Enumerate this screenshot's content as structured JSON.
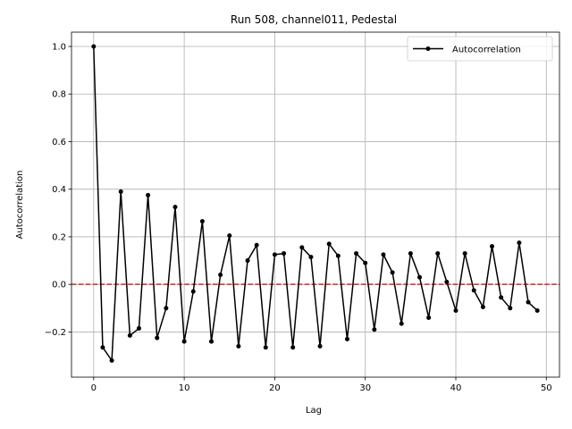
{
  "chart_data": {
    "type": "line",
    "title": "Run 508, channel011, Pedestal",
    "xlabel": "Lag",
    "ylabel": "Autocorrelation",
    "xlim": [
      -2.45,
      51.45
    ],
    "ylim": [
      -0.39,
      1.06
    ],
    "xticks": [
      0,
      10,
      20,
      30,
      40,
      50
    ],
    "yticks": [
      -0.2,
      0.0,
      0.2,
      0.4,
      0.6,
      0.8,
      1.0
    ],
    "xtick_labels": [
      "0",
      "10",
      "20",
      "30",
      "40",
      "50"
    ],
    "ytick_labels": [
      "−0.2",
      "0.0",
      "0.2",
      "0.4",
      "0.6",
      "0.8",
      "1.0"
    ],
    "grid": true,
    "legend": {
      "position": "top-right",
      "entries": [
        "Autocorrelation"
      ]
    },
    "reference_line": {
      "y": 0.0,
      "color": "#d62728",
      "style": "dashed"
    },
    "series": [
      {
        "name": "Autocorrelation",
        "color": "#000000",
        "x": [
          0,
          1,
          2,
          3,
          4,
          5,
          6,
          7,
          8,
          9,
          10,
          11,
          12,
          13,
          14,
          15,
          16,
          17,
          18,
          19,
          20,
          21,
          22,
          23,
          24,
          25,
          26,
          27,
          28,
          29,
          30,
          31,
          32,
          33,
          34,
          35,
          36,
          37,
          38,
          39,
          40,
          41,
          42,
          43,
          44,
          45,
          46,
          47,
          48,
          49
        ],
        "values": [
          1.0,
          -0.265,
          -0.32,
          0.39,
          -0.215,
          -0.185,
          0.375,
          -0.225,
          -0.1,
          0.325,
          -0.24,
          -0.03,
          0.265,
          -0.24,
          0.04,
          0.205,
          -0.26,
          0.1,
          0.165,
          -0.265,
          0.125,
          0.13,
          -0.265,
          0.155,
          0.115,
          -0.26,
          0.17,
          0.12,
          -0.23,
          0.13,
          0.09,
          -0.19,
          0.125,
          0.05,
          -0.165,
          0.13,
          0.03,
          -0.14,
          0.13,
          0.01,
          -0.11,
          0.13,
          -0.025,
          -0.095,
          0.16,
          -0.055,
          -0.1,
          0.175,
          -0.075,
          -0.11
        ]
      }
    ]
  }
}
